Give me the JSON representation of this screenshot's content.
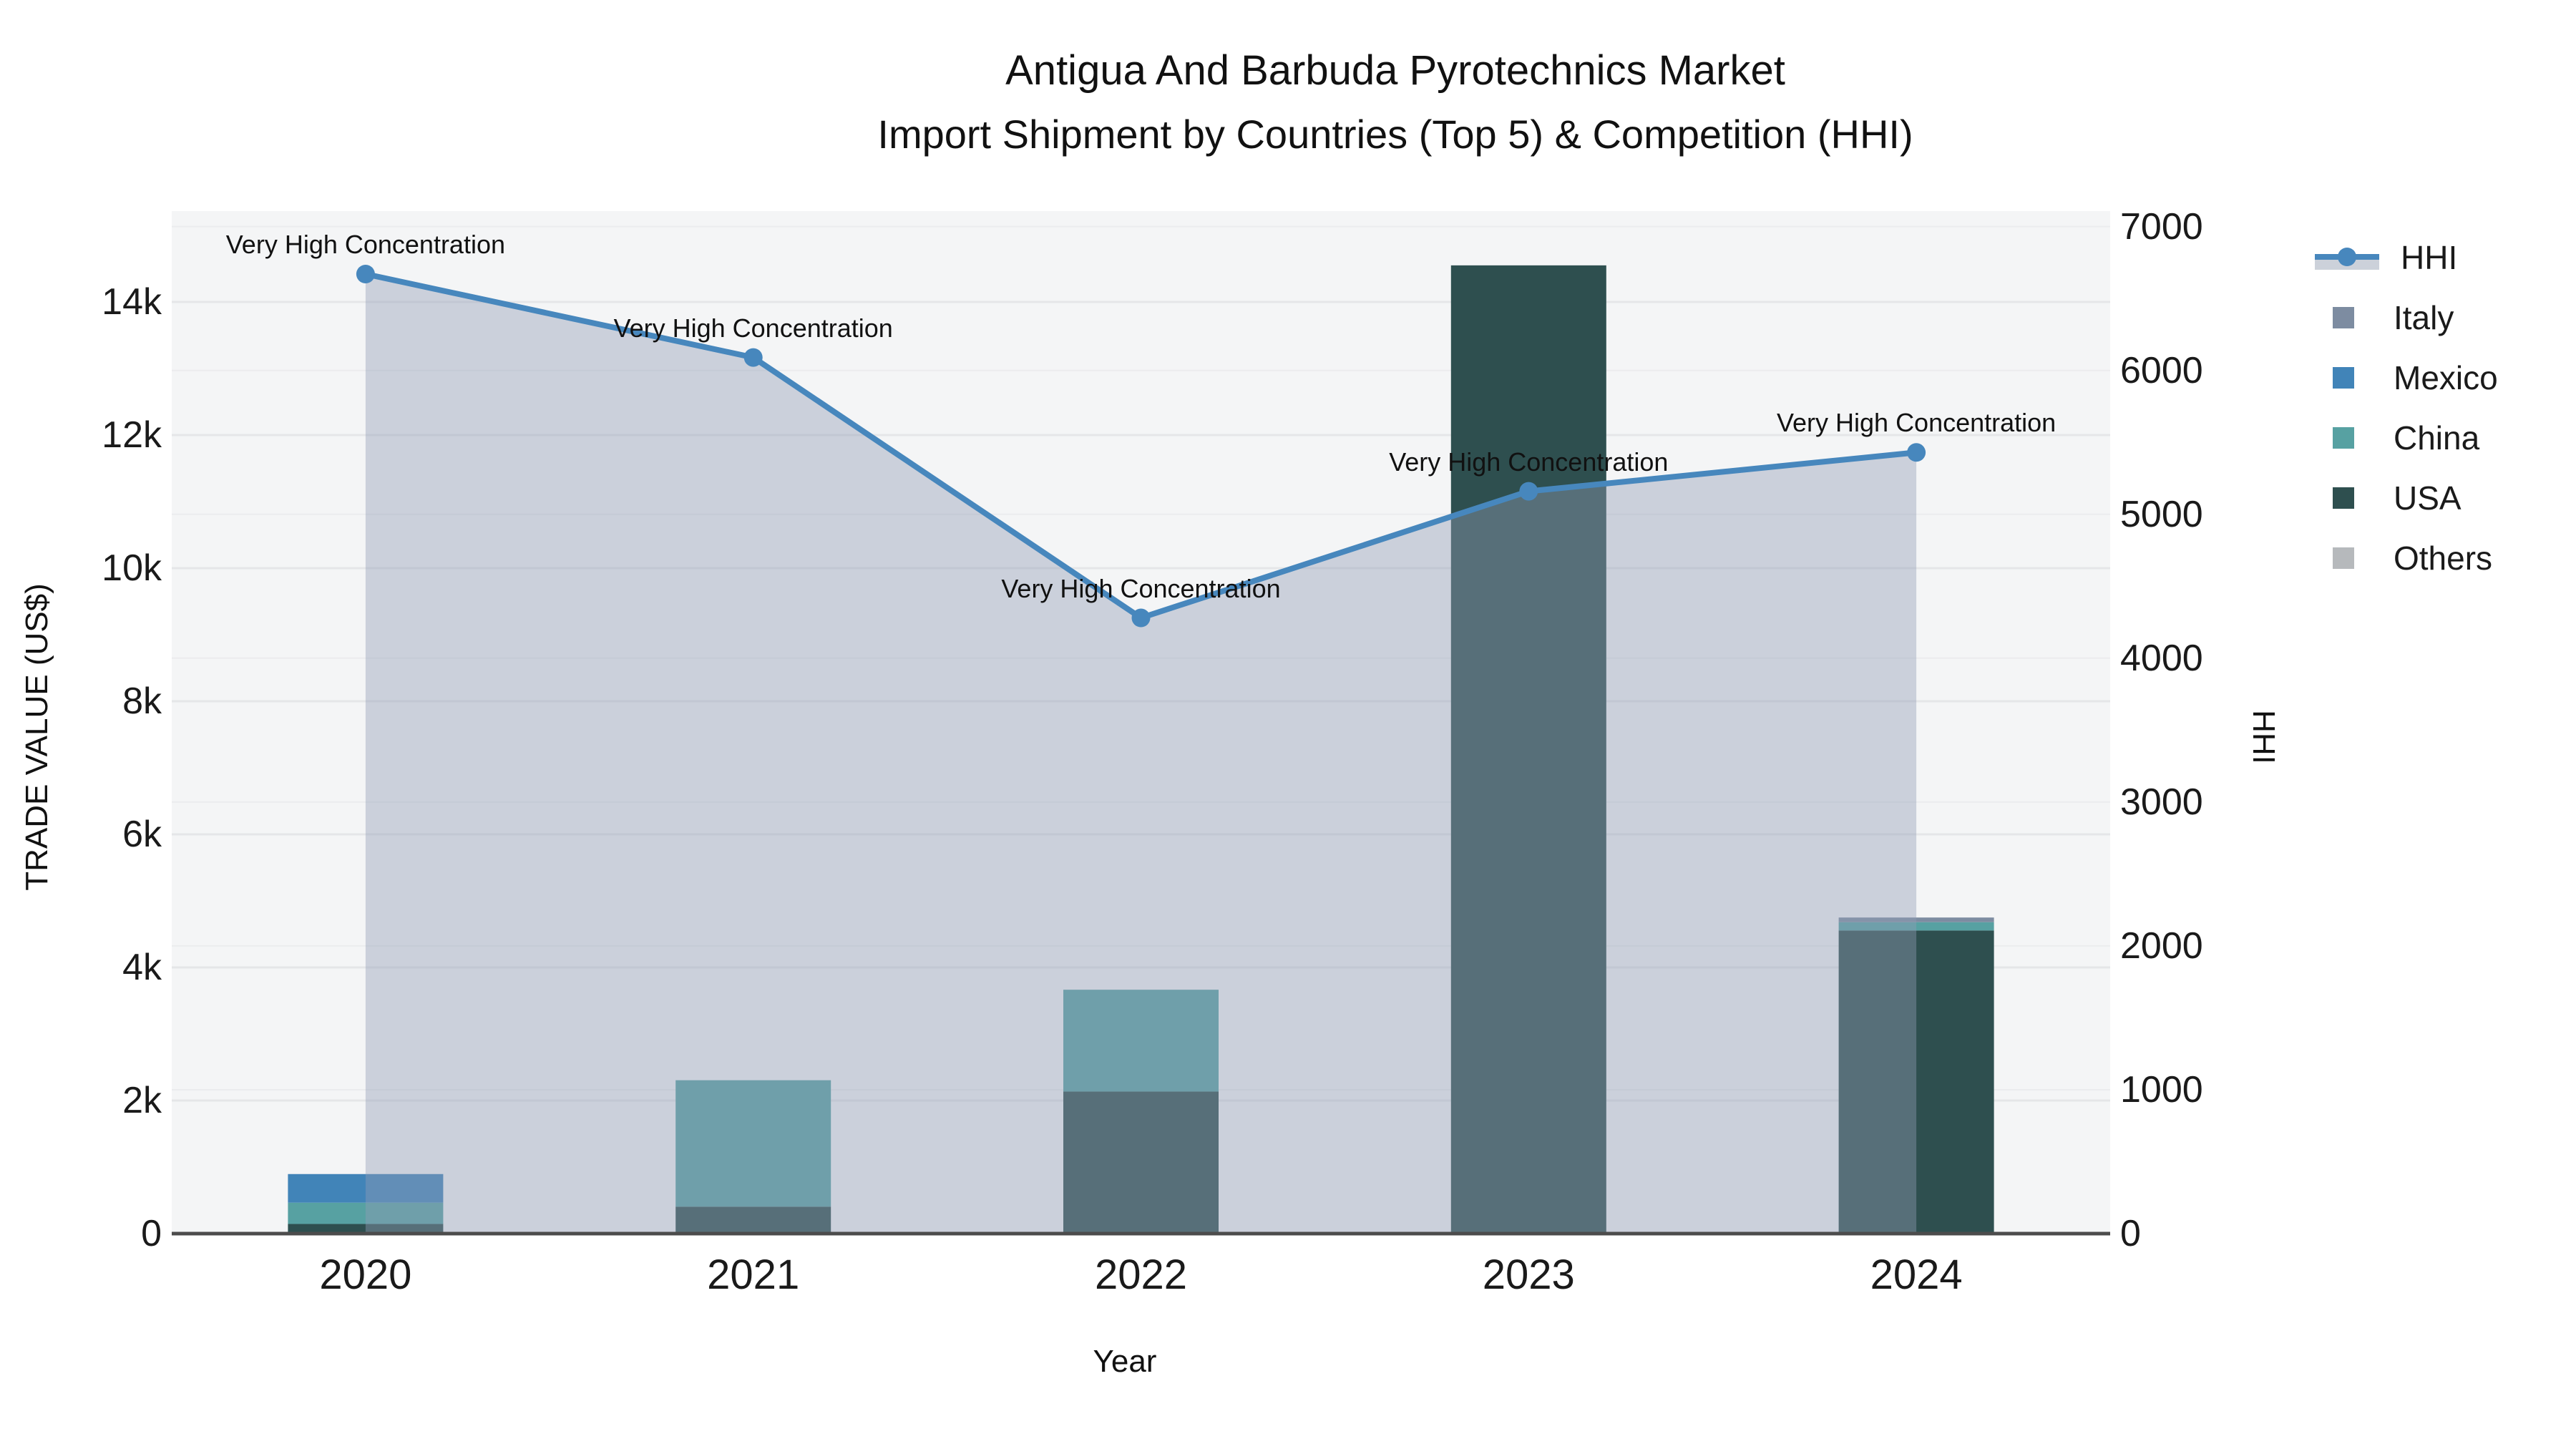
{
  "title": {
    "line1": "Antigua And Barbuda Pyrotechnics Market",
    "line2": "Import Shipment by Countries (Top 5) & Competition (HHI)"
  },
  "axes": {
    "x": {
      "title": "Year",
      "tick_labels": [
        "2020",
        "2021",
        "2022",
        "2023",
        "2024"
      ]
    },
    "y_left": {
      "title": "TRADE VALUE (US$)",
      "tick_labels": [
        "0",
        "2k",
        "4k",
        "6k",
        "8k",
        "10k",
        "12k",
        "14k"
      ],
      "tick_values": [
        0,
        2000,
        4000,
        6000,
        8000,
        10000,
        12000,
        14000
      ],
      "range": [
        0,
        15365
      ]
    },
    "y_right": {
      "title": "HHI",
      "tick_labels": [
        "0",
        "1000",
        "2000",
        "3000",
        "4000",
        "5000",
        "6000",
        "7000"
      ],
      "tick_values": [
        0,
        1000,
        2000,
        3000,
        4000,
        5000,
        6000,
        7000
      ],
      "range": [
        0,
        7108
      ]
    }
  },
  "legend": {
    "items": [
      {
        "label": "HHI",
        "type": "line",
        "color": "#4787bd"
      },
      {
        "label": "Italy",
        "type": "swatch",
        "color": "#7d8ca1"
      },
      {
        "label": "Mexico",
        "type": "swatch",
        "color": "#4184b8"
      },
      {
        "label": "China",
        "type": "swatch",
        "color": "#57a1a2"
      },
      {
        "label": "USA",
        "type": "swatch",
        "color": "#2e4f4f"
      },
      {
        "label": "Others",
        "type": "swatch",
        "color": "#b6b9bc"
      }
    ]
  },
  "chart_data": {
    "type": "combo: stacked bar + line (dual axis)",
    "categories": [
      "2020",
      "2021",
      "2022",
      "2023",
      "2024"
    ],
    "bar_axis": "left (TRADE VALUE US$)",
    "series": [
      {
        "name": "Italy",
        "color": "#7d8ca1",
        "values": [
          0,
          0,
          0,
          0,
          70
        ]
      },
      {
        "name": "Mexico",
        "color": "#4184b8",
        "values": [
          430,
          0,
          0,
          0,
          0
        ]
      },
      {
        "name": "China",
        "color": "#57a1a2",
        "values": [
          320,
          1900,
          1530,
          0,
          125
        ]
      },
      {
        "name": "USA",
        "color": "#2e4f4f",
        "values": [
          145,
          405,
          2135,
          14550,
          4555
        ]
      },
      {
        "name": "Others",
        "color": "#b6b9bc",
        "values": [
          0,
          0,
          0,
          0,
          0
        ]
      }
    ],
    "stack_order_bottom_to_top": [
      "Others",
      "USA",
      "China",
      "Mexico",
      "Italy"
    ],
    "line": {
      "name": "HHI",
      "axis": "right (HHI)",
      "color": "#4787bd",
      "fill": "area to zero, translucent",
      "values": [
        6670,
        6090,
        4280,
        5160,
        5430
      ],
      "point_annotations": [
        "Very High Concentration",
        "Very High Concentration",
        "Very High Concentration",
        "Very High Concentration",
        "Very High Concentration"
      ]
    },
    "grid": "on (both axes, horizontal lines)",
    "legend_position": "right"
  },
  "colors": {
    "plot_background": "#f4f5f6",
    "page_background": "#ffffff",
    "gridline_left": "#e5e6e8",
    "gridline_right": "#ebecee",
    "axis_line": "#4c4c4c",
    "hhi_line": "#4787bd",
    "hhi_area_fill": "rgba(146,157,181,0.42)",
    "text": "#111111"
  }
}
